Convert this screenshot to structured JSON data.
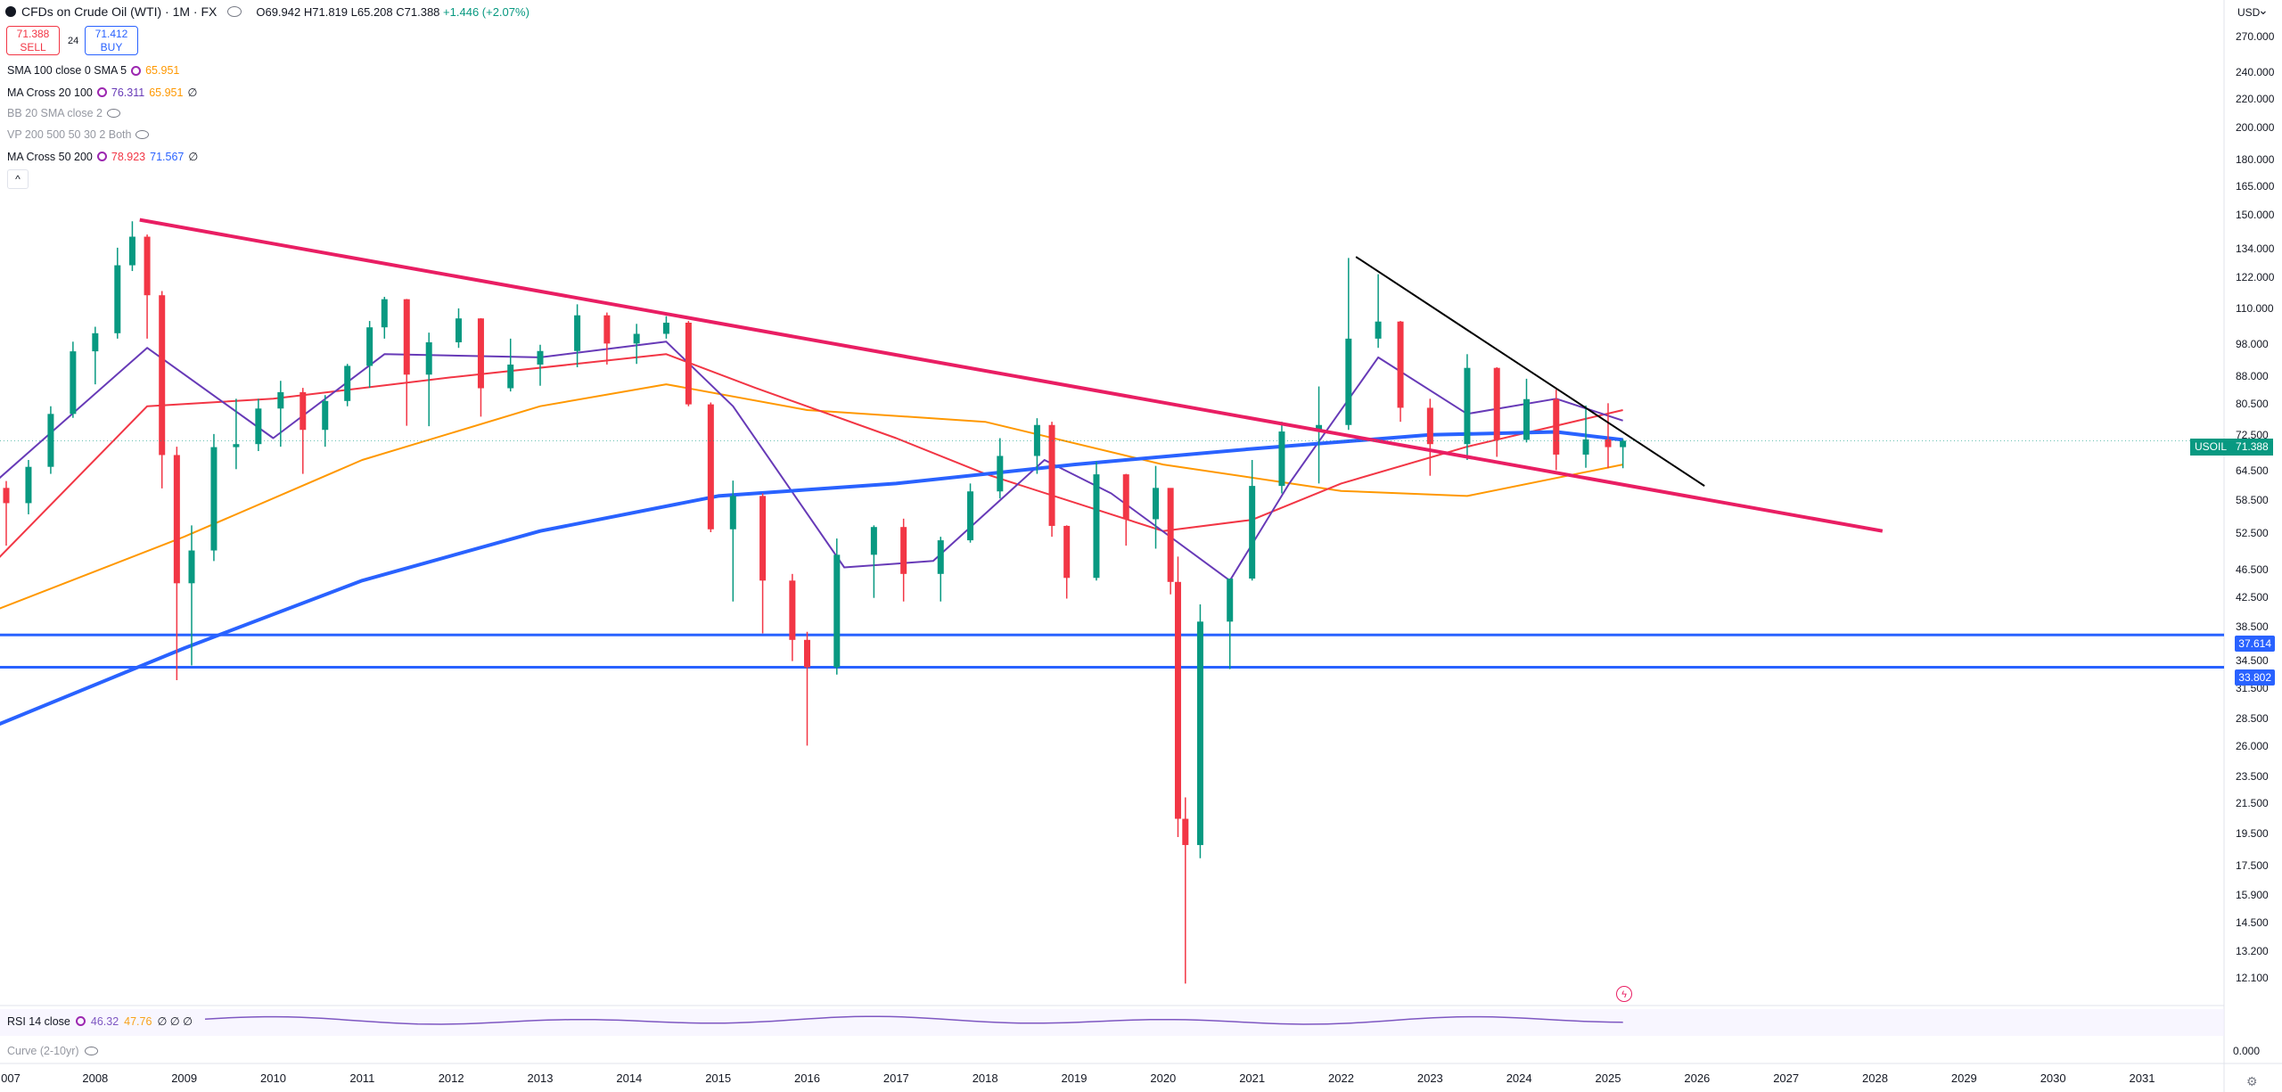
{
  "header": {
    "title": "CFDs on Crude Oil (WTI) · 1M · FX",
    "ohlc": {
      "o": "O69.942",
      "h": "H71.819",
      "l": "L65.208",
      "c": "C71.388",
      "change": "+1.446 (+2.07%)"
    },
    "sell_price": "71.388",
    "sell_label": "SELL",
    "buy_price": "71.412",
    "buy_label": "BUY",
    "spread": "24"
  },
  "indicators": [
    {
      "label": "SMA 100 close 0 SMA 5",
      "v1": "65.951",
      "v2": "",
      "v1_color": "#ff9800",
      "v2_color": "",
      "dim": false,
      "tail": ""
    },
    {
      "label": "MA Cross 20 100",
      "v1": "76.311",
      "v2": "65.951",
      "v1_color": "#673ab7",
      "v2_color": "#ff9800",
      "dim": false,
      "tail": "∅"
    },
    {
      "label": "BB 20 SMA close 2",
      "v1": "",
      "v2": "",
      "v1_color": "",
      "v2_color": "",
      "dim": true,
      "tail": ""
    },
    {
      "label": "VP 200 500 50 30 2 Both",
      "v1": "",
      "v2": "",
      "v1_color": "",
      "v2_color": "",
      "dim": true,
      "tail": ""
    },
    {
      "label": "MA Cross 50 200",
      "v1": "78.923",
      "v2": "71.567",
      "v1_color": "#f23645",
      "v2_color": "#2962ff",
      "dim": false,
      "tail": "∅"
    }
  ],
  "collapse_label": "^",
  "price_axis": {
    "currency": "USD",
    "ticks": [
      "270.000",
      "240.000",
      "220.000",
      "200.000",
      "180.000",
      "165.000",
      "150.000",
      "134.000",
      "122.000",
      "110.000",
      "98.000",
      "88.000",
      "80.500",
      "72.500",
      "64.500",
      "58.500",
      "52.500",
      "46.500",
      "42.500",
      "38.500",
      "34.500",
      "31.500",
      "28.500",
      "26.000",
      "23.500",
      "21.500",
      "19.500",
      "17.500",
      "15.900",
      "14.500",
      "13.200",
      "12.100"
    ],
    "current": {
      "symbol": "USOIL",
      "value": "71.388"
    },
    "level_tags": [
      "37.614",
      "33.802"
    ]
  },
  "rsi": {
    "label": "RSI 14 close",
    "v1": "46.32",
    "v2": "47.76",
    "tail": "∅ ∅ ∅",
    "zero": "0.000"
  },
  "curve_label": "Curve (2-10yr)",
  "time_axis": [
    "007",
    "2008",
    "2009",
    "2010",
    "2011",
    "2012",
    "2013",
    "2014",
    "2015",
    "2016",
    "2017",
    "2018",
    "2019",
    "2020",
    "2021",
    "2022",
    "2023",
    "2024",
    "2025",
    "2026",
    "2027",
    "2028",
    "2029",
    "2030",
    "2031"
  ],
  "colors": {
    "up": "#089981",
    "down": "#f23645",
    "sma100": "#ff9800",
    "ma20": "#673ab7",
    "ma50": "#f23645",
    "ma200": "#2962ff",
    "trend_pink": "#e91e63",
    "support": "#2962ff"
  },
  "chart_data": {
    "type": "candlestick",
    "title": "CFDs on Crude Oil (WTI) · 1M · FX",
    "scale": "log",
    "ylim": [
      11.5,
      290
    ],
    "x_range": [
      "2006-12",
      "2031-12"
    ],
    "candles": [
      [
        "2007-01",
        61.1,
        62.5,
        50.5,
        58.1
      ],
      [
        "2007-04",
        58.1,
        67.0,
        56.0,
        65.5
      ],
      [
        "2007-07",
        65.5,
        80.0,
        64.0,
        78.0
      ],
      [
        "2007-10",
        78.0,
        99.0,
        77.0,
        95.9
      ],
      [
        "2008-01",
        95.9,
        104.0,
        86.0,
        101.8
      ],
      [
        "2008-04",
        101.8,
        135.0,
        100.0,
        127.4
      ],
      [
        "2008-06",
        127.4,
        147.3,
        125.0,
        140.0
      ],
      [
        "2008-08",
        140.0,
        141.0,
        100.0,
        115.4
      ],
      [
        "2008-10",
        115.4,
        117.0,
        61.0,
        68.1
      ],
      [
        "2008-12",
        68.1,
        70.0,
        32.4,
        44.6
      ],
      [
        "2009-02",
        44.6,
        54.0,
        34.0,
        49.7
      ],
      [
        "2009-05",
        49.7,
        73.0,
        48.0,
        69.9
      ],
      [
        "2009-08",
        69.9,
        82.0,
        65.0,
        70.6
      ],
      [
        "2009-11",
        70.6,
        82.0,
        69.0,
        79.4
      ],
      [
        "2010-02",
        79.4,
        87.0,
        70.0,
        83.8
      ],
      [
        "2010-05",
        83.8,
        85.0,
        64.0,
        74.0
      ],
      [
        "2010-08",
        74.0,
        83.0,
        70.0,
        81.4
      ],
      [
        "2010-11",
        81.4,
        92.0,
        80.0,
        91.4
      ],
      [
        "2011-02",
        91.4,
        106.0,
        85.0,
        103.8
      ],
      [
        "2011-04",
        103.8,
        114.8,
        100.0,
        113.9
      ],
      [
        "2011-07",
        113.9,
        114.0,
        75.0,
        88.8
      ],
      [
        "2011-10",
        88.8,
        102.0,
        74.9,
        98.8
      ],
      [
        "2012-02",
        98.8,
        110.5,
        97.0,
        106.9
      ],
      [
        "2012-05",
        106.9,
        107.0,
        77.3,
        84.9
      ],
      [
        "2012-09",
        84.9,
        100.0,
        84.0,
        91.8
      ],
      [
        "2013-01",
        91.8,
        98.0,
        85.6,
        96.0
      ],
      [
        "2013-06",
        96.0,
        112.0,
        91.0,
        108.0
      ],
      [
        "2013-10",
        108.0,
        109.0,
        91.8,
        98.4
      ],
      [
        "2014-02",
        98.4,
        105.0,
        92.0,
        101.6
      ],
      [
        "2014-06",
        101.6,
        107.7,
        100.0,
        105.4
      ],
      [
        "2014-09",
        105.4,
        106.0,
        80.0,
        80.5
      ],
      [
        "2014-12",
        80.5,
        81.0,
        52.8,
        53.3
      ],
      [
        "2015-03",
        53.3,
        62.6,
        42.0,
        59.5
      ],
      [
        "2015-07",
        59.5,
        60.0,
        37.8,
        45.0
      ],
      [
        "2015-11",
        45.0,
        46.0,
        34.5,
        37.0
      ],
      [
        "2016-01",
        37.0,
        38.0,
        26.1,
        33.8
      ],
      [
        "2016-05",
        33.8,
        51.7,
        33.0,
        49.0
      ],
      [
        "2016-10",
        49.0,
        54.0,
        42.5,
        53.7
      ],
      [
        "2017-02",
        53.7,
        55.2,
        42.0,
        46.0
      ],
      [
        "2017-07",
        46.0,
        52.0,
        42.0,
        51.4
      ],
      [
        "2017-11",
        51.4,
        62.0,
        51.0,
        60.4
      ],
      [
        "2018-03",
        60.4,
        72.0,
        59.0,
        67.9
      ],
      [
        "2018-08",
        67.9,
        76.9,
        64.0,
        75.2
      ],
      [
        "2018-10",
        75.2,
        76.0,
        52.0,
        53.9
      ],
      [
        "2018-12",
        53.9,
        54.0,
        42.4,
        45.4
      ],
      [
        "2019-04",
        45.4,
        66.6,
        45.0,
        63.9
      ],
      [
        "2019-08",
        63.9,
        64.0,
        50.5,
        55.1
      ],
      [
        "2019-12",
        55.1,
        65.7,
        50.0,
        61.1
      ],
      [
        "2020-02",
        61.1,
        61.0,
        43.0,
        44.8
      ],
      [
        "2020-03",
        44.8,
        48.7,
        19.3,
        20.5
      ],
      [
        "2020-04",
        20.5,
        22.0,
        11.9,
        18.8
      ],
      [
        "2020-06",
        18.8,
        41.6,
        18.0,
        39.3
      ],
      [
        "2020-10",
        39.3,
        45.0,
        33.6,
        45.3
      ],
      [
        "2021-01",
        45.3,
        67.0,
        45.0,
        61.5
      ],
      [
        "2021-05",
        61.5,
        76.0,
        60.0,
        73.6
      ],
      [
        "2021-10",
        73.6,
        85.4,
        62.0,
        75.2
      ],
      [
        "2022-02",
        75.2,
        130.5,
        74.0,
        100.0
      ],
      [
        "2022-06",
        100.0,
        123.7,
        97.0,
        105.8
      ],
      [
        "2022-09",
        105.8,
        106.0,
        76.0,
        79.6
      ],
      [
        "2023-01",
        79.6,
        82.0,
        63.6,
        70.6
      ],
      [
        "2023-06",
        70.6,
        95.0,
        67.0,
        90.8
      ],
      [
        "2023-10",
        90.8,
        91.0,
        67.7,
        71.6
      ],
      [
        "2024-02",
        71.6,
        87.6,
        71.0,
        81.9
      ],
      [
        "2024-06",
        81.9,
        84.5,
        64.8,
        68.2
      ],
      [
        "2024-10",
        68.2,
        80.2,
        65.3,
        71.7
      ],
      [
        "2025-01",
        71.7,
        80.8,
        65.2,
        69.9
      ],
      [
        "2025-03",
        69.9,
        71.8,
        65.2,
        71.4
      ]
    ],
    "trendlines": [
      {
        "name": "pink",
        "from": [
          "2008-07",
          148
        ],
        "to": [
          "2028-02",
          53
        ]
      },
      {
        "name": "black",
        "from": [
          "2022-03",
          131
        ],
        "to": [
          "2026-02",
          61.5
        ]
      }
    ],
    "horizontal_levels": [
      37.614,
      33.802
    ],
    "ma200_points": [
      [
        "2006-12",
        28.0
      ],
      [
        "2009-01",
        36.0
      ],
      [
        "2011-01",
        45.0
      ],
      [
        "2013-01",
        53.0
      ],
      [
        "2015-01",
        59.5
      ],
      [
        "2017-01",
        62.0
      ],
      [
        "2019-01",
        66.0
      ],
      [
        "2021-01",
        69.5
      ],
      [
        "2023-01",
        72.8
      ],
      [
        "2024-06",
        73.5
      ],
      [
        "2025-03",
        71.6
      ]
    ],
    "sma100_points": [
      [
        "2006-12",
        41.0
      ],
      [
        "2009-01",
        52.0
      ],
      [
        "2011-01",
        67.0
      ],
      [
        "2013-01",
        80.0
      ],
      [
        "2014-06",
        86.0
      ],
      [
        "2016-01",
        79.0
      ],
      [
        "2018-01",
        76.0
      ],
      [
        "2020-01",
        66.0
      ],
      [
        "2022-01",
        60.5
      ],
      [
        "2023-06",
        59.5
      ],
      [
        "2025-03",
        66.0
      ]
    ],
    "ma50_points": [
      [
        "2006-12",
        48.5
      ],
      [
        "2008-08",
        80.0
      ],
      [
        "2010-01",
        82.0
      ],
      [
        "2012-01",
        88.0
      ],
      [
        "2014-06",
        95.0
      ],
      [
        "2015-06",
        85.0
      ],
      [
        "2017-01",
        72.0
      ],
      [
        "2018-01",
        64.0
      ],
      [
        "2020-01",
        53.0
      ],
      [
        "2021-01",
        55.0
      ],
      [
        "2022-01",
        62.0
      ],
      [
        "2023-06",
        70.0
      ],
      [
        "2025-03",
        79.0
      ]
    ],
    "ma20_points": [
      [
        "2006-12",
        63.0
      ],
      [
        "2008-08",
        97.0
      ],
      [
        "2010-01",
        72.0
      ],
      [
        "2011-04",
        95.0
      ],
      [
        "2013-01",
        94.0
      ],
      [
        "2014-06",
        99.0
      ],
      [
        "2015-03",
        80.0
      ],
      [
        "2016-06",
        47.0
      ],
      [
        "2017-06",
        48.0
      ],
      [
        "2018-09",
        67.0
      ],
      [
        "2019-06",
        60.0
      ],
      [
        "2020-10",
        45.0
      ],
      [
        "2021-06",
        62.0
      ],
      [
        "2022-06",
        94.0
      ],
      [
        "2023-06",
        78.0
      ],
      [
        "2024-06",
        82.0
      ],
      [
        "2025-03",
        76.3
      ]
    ],
    "rsi_values": [
      46.32
    ]
  }
}
